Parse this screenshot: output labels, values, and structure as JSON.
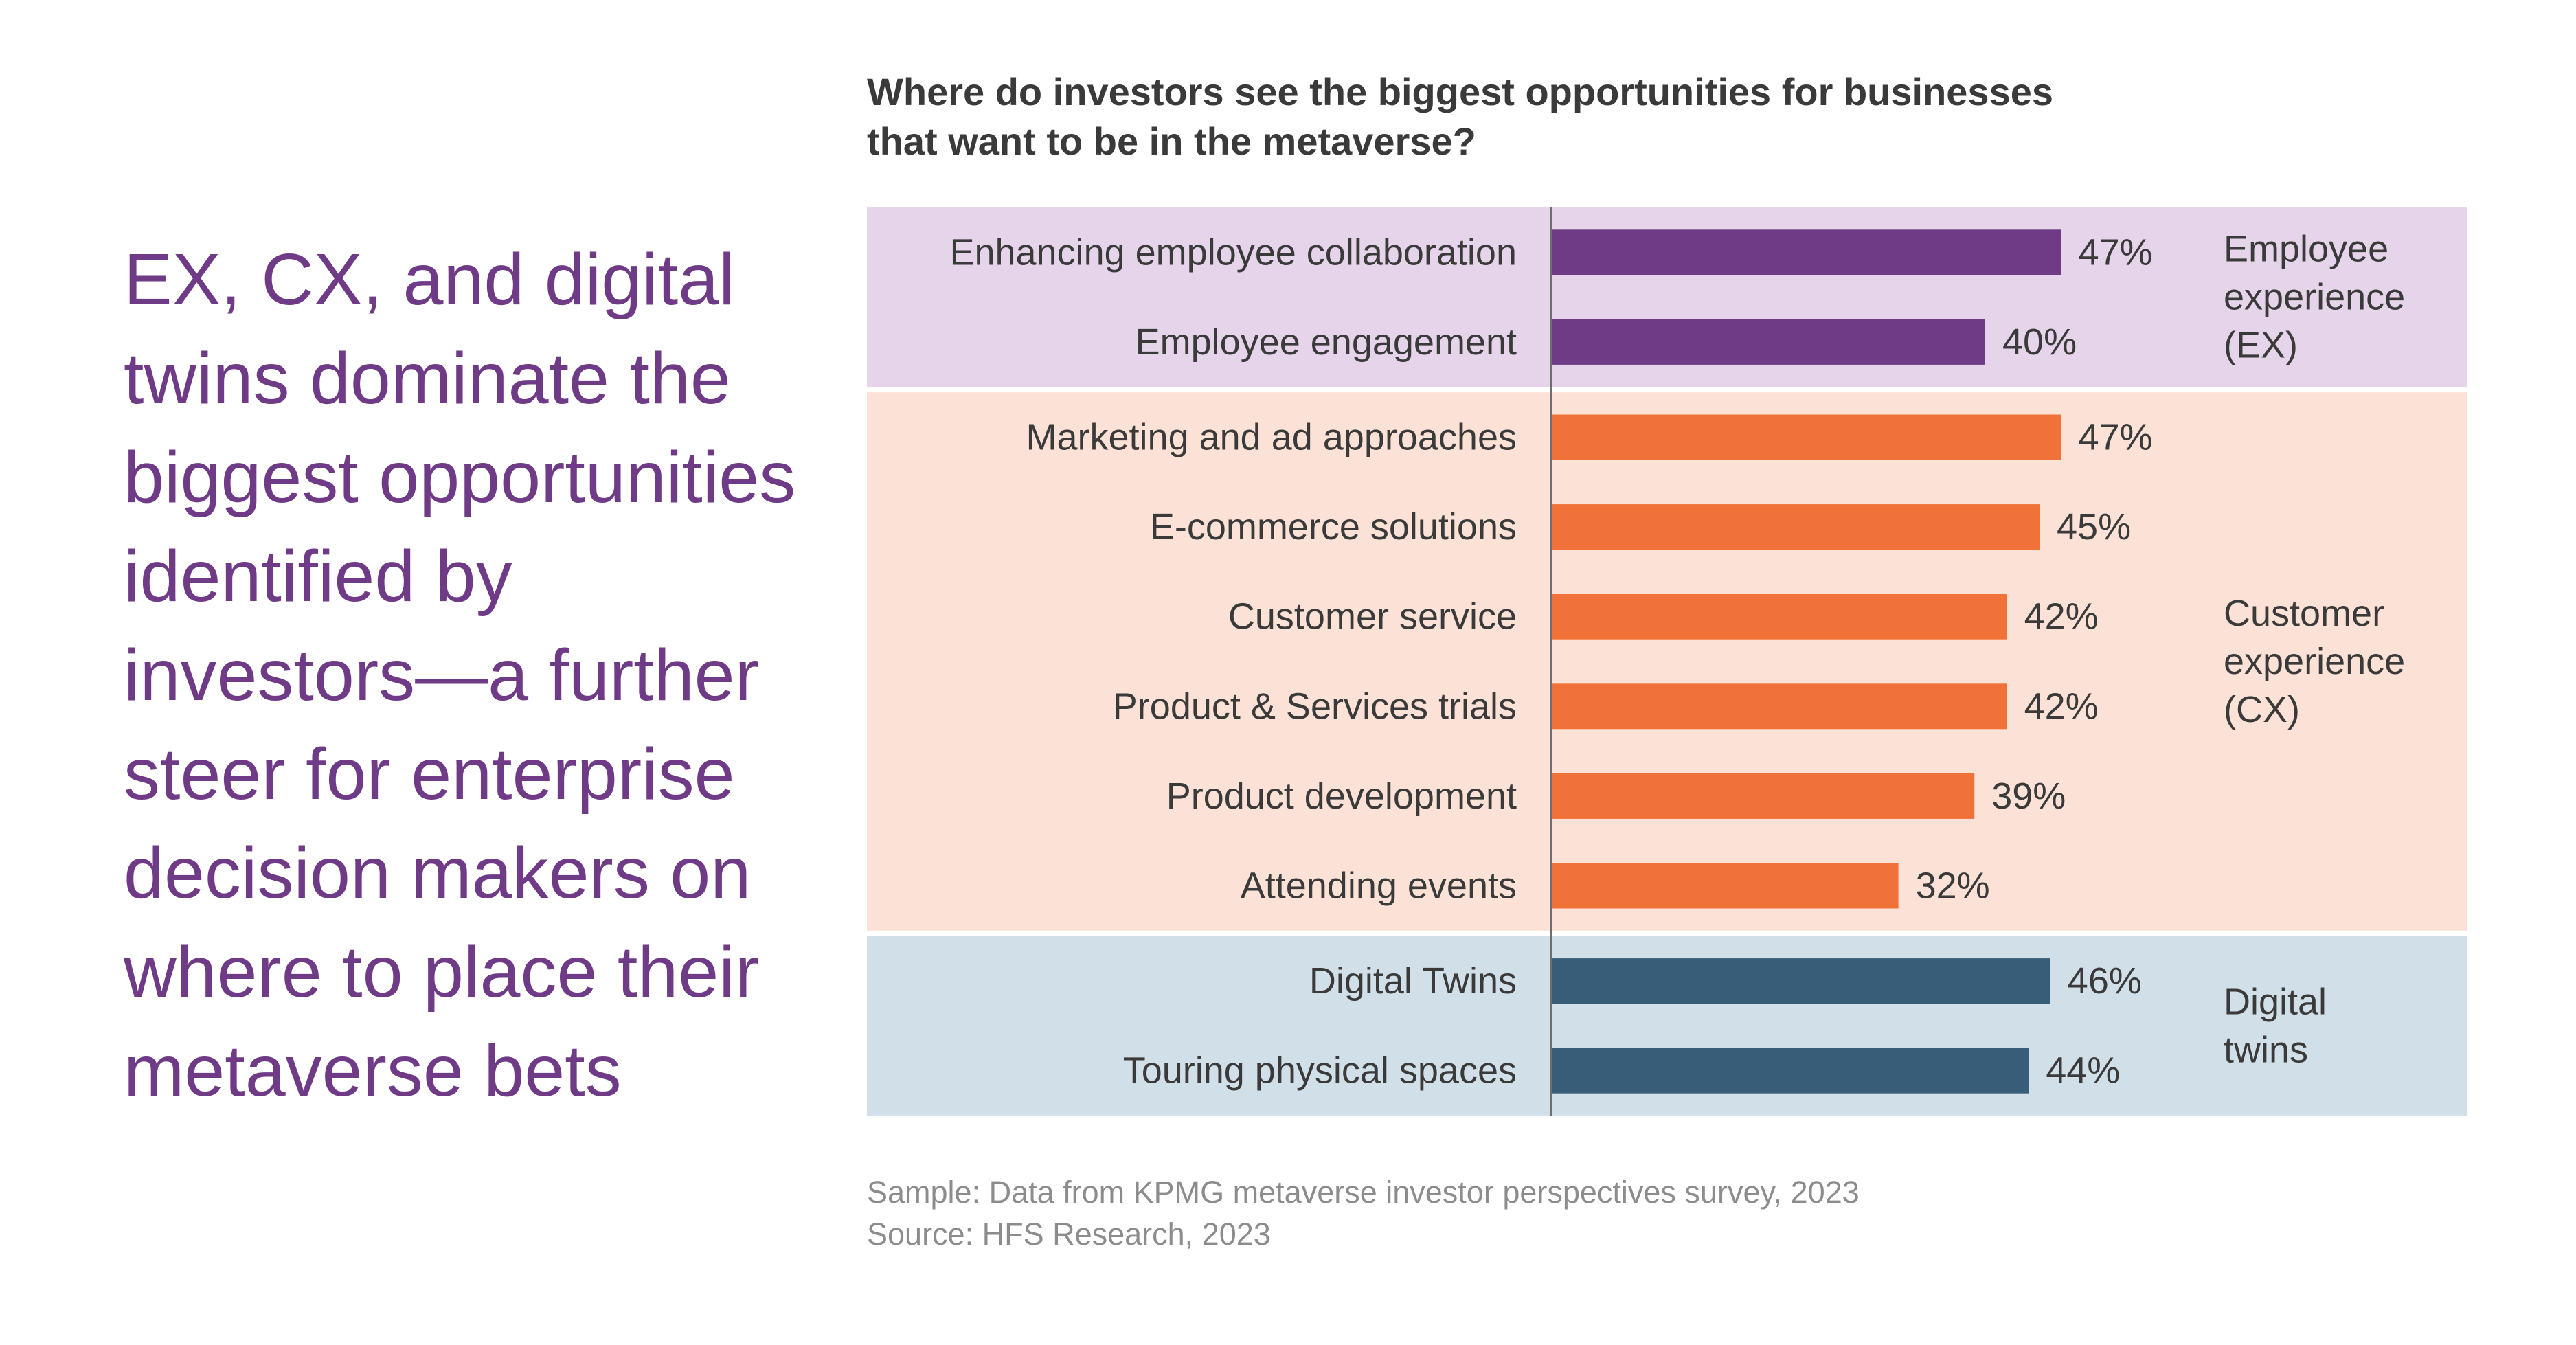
{
  "headline": "EX, CX, and digital twins dominate the biggest opportunities identified by investors—a further steer for enterprise decision makers on where to place their metaverse bets",
  "footnote": {
    "sample": "Sample: Data from KPMG metaverse investor perspectives survey, 2023",
    "source": "Source: HFS Research, 2023"
  },
  "colors": {
    "headline": "#6f3a86",
    "ex_bar": "#6f3a86",
    "ex_band": "#e6d5ea",
    "cx_bar": "#f07238",
    "cx_band": "#fbe1d6",
    "dt_bar": "#375d78",
    "dt_band": "#d1e0e8"
  },
  "chart_data": {
    "type": "bar",
    "orientation": "horizontal",
    "title_lines": [
      "Where do investors see the biggest opportunities for businesses",
      "that want to be in the metaverse?"
    ],
    "value_suffix": "%",
    "xlim": [
      0,
      70
    ],
    "grid": false,
    "groups": [
      {
        "label_lines": [
          "Employee",
          "experience",
          "(EX)"
        ],
        "bar_color": "#6f3a86",
        "band_color": "#e6d5ea",
        "categories": [
          "Enhancing employee collaboration",
          "Employee engagement"
        ],
        "values": [
          47,
          40
        ]
      },
      {
        "label_lines": [
          "Customer",
          "experience",
          "(CX)"
        ],
        "bar_color": "#f07238",
        "band_color": "#fbe1d6",
        "categories": [
          "Marketing and ad approaches",
          "E-commerce solutions",
          "Customer service",
          "Product & Services trials",
          "Product development",
          "Attending events"
        ],
        "values": [
          47,
          45,
          42,
          42,
          39,
          32
        ]
      },
      {
        "label_lines": [
          "Digital",
          "twins"
        ],
        "bar_color": "#375d78",
        "band_color": "#d1e0e8",
        "categories": [
          "Digital Twins",
          "Touring physical spaces"
        ],
        "values": [
          46,
          44
        ]
      }
    ]
  }
}
